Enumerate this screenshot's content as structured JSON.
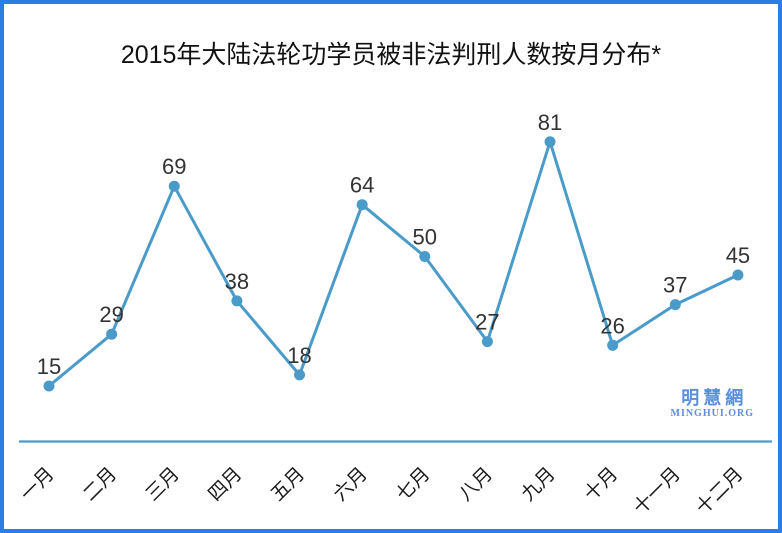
{
  "chart_data": {
    "type": "line",
    "title": "2015年大陆法轮功学员被非法判刑人数按月分布*",
    "categories": [
      "一月",
      "二月",
      "三月",
      "四月",
      "五月",
      "六月",
      "七月",
      "八月",
      "九月",
      "十月",
      "十一月",
      "十二月"
    ],
    "values": [
      15,
      29,
      69,
      38,
      18,
      64,
      50,
      27,
      81,
      26,
      37,
      45
    ],
    "xlabel": "",
    "ylabel": "",
    "ylim": [
      0,
      90
    ],
    "grid": false,
    "legend": false,
    "data_labels": true,
    "marker": "circle"
  },
  "watermark": {
    "name": "明慧網",
    "site": "MINGHUI.ORG"
  },
  "colors": {
    "line": "#4a9bc9",
    "marker": "#4a9bc9",
    "axis_line": "#4a9bc9",
    "border": "#2d7ee4",
    "value_label": "#333333",
    "month_label": "#1a1a1a",
    "title": "#111111",
    "watermark": "#5c8fdb"
  }
}
